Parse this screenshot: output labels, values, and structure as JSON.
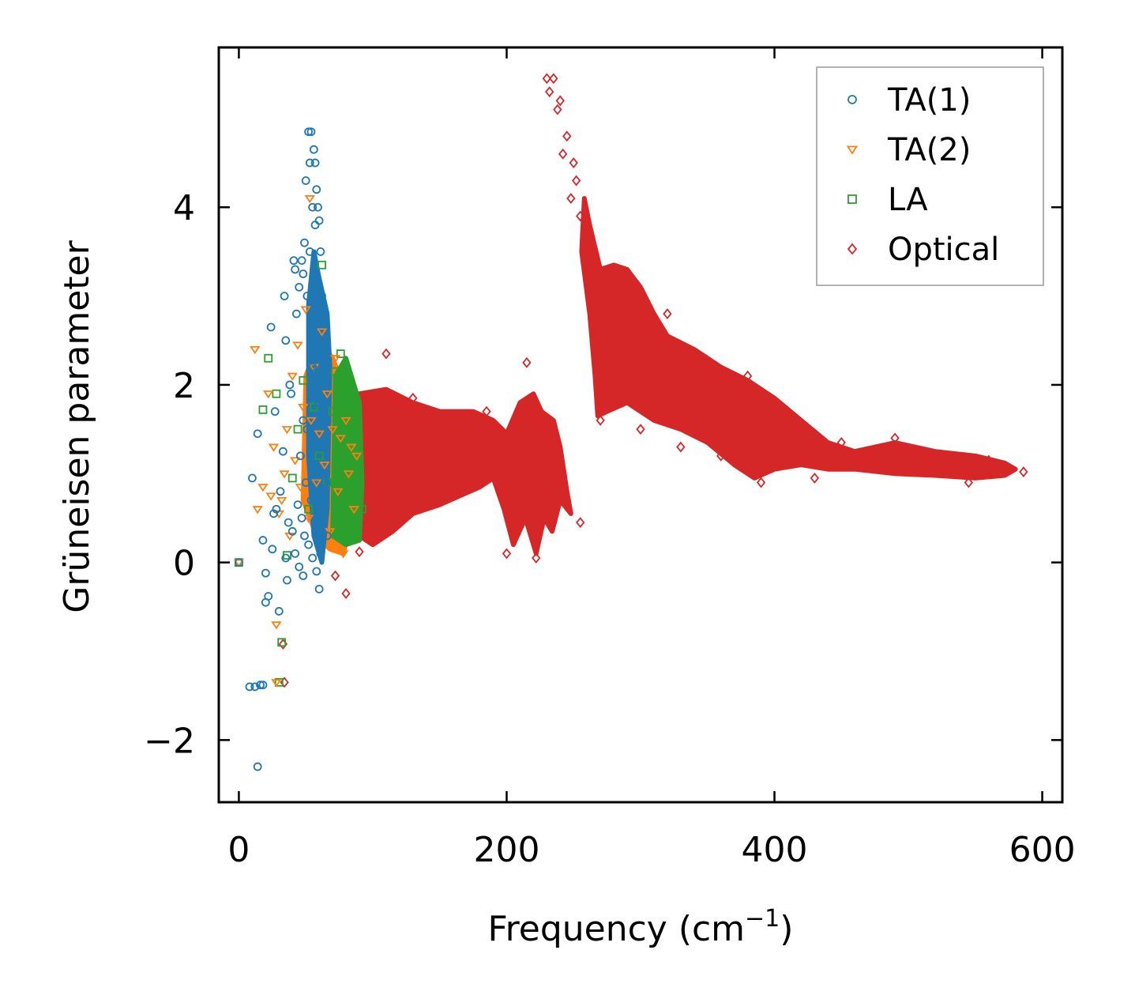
{
  "chart_data": {
    "type": "scatter",
    "title": "",
    "xlabel": "Frequency (cm",
    "xlabel_sup": "−1",
    "xlabel_end": ")",
    "ylabel": "Grüneisen parameter",
    "xlim": [
      -15,
      615
    ],
    "ylim": [
      -2.7,
      5.8
    ],
    "xticks": [
      0,
      200,
      400,
      600
    ],
    "yticks": [
      -2,
      0,
      2,
      4
    ],
    "xtick_labels": [
      "0",
      "200",
      "400",
      "600"
    ],
    "ytick_labels": [
      "−2",
      "0",
      "2",
      "4"
    ],
    "grid": false,
    "legend_position": "top-right",
    "series": [
      {
        "name": "TA(1)",
        "marker": "circle",
        "color": "#1f77b4",
        "points": [
          [
            0,
            0.0
          ],
          [
            8,
            -1.4
          ],
          [
            12,
            -1.4
          ],
          [
            14,
            -2.3
          ],
          [
            16,
            -1.38
          ],
          [
            18,
            -1.38
          ],
          [
            10,
            0.95
          ],
          [
            14,
            1.45
          ],
          [
            18,
            0.25
          ],
          [
            20,
            -0.12
          ],
          [
            20,
            -0.45
          ],
          [
            22,
            -0.38
          ],
          [
            24,
            2.65
          ],
          [
            25,
            0.15
          ],
          [
            26,
            0.55
          ],
          [
            27,
            1.7
          ],
          [
            28,
            0.6
          ],
          [
            30,
            -0.55
          ],
          [
            31,
            0.8
          ],
          [
            33,
            1.25
          ],
          [
            34,
            3.0
          ],
          [
            35,
            2.5
          ],
          [
            35,
            0.05
          ],
          [
            36,
            -0.2
          ],
          [
            37,
            0.45
          ],
          [
            38,
            2.0
          ],
          [
            39,
            1.9
          ],
          [
            40,
            0.35
          ],
          [
            41,
            3.4
          ],
          [
            42,
            0.1
          ],
          [
            42,
            3.3
          ],
          [
            43,
            2.8
          ],
          [
            44,
            0.65
          ],
          [
            45,
            3.1
          ],
          [
            45,
            -0.05
          ],
          [
            46,
            1.2
          ],
          [
            47,
            3.4
          ],
          [
            47,
            0.5
          ],
          [
            48,
            1.6
          ],
          [
            48,
            3.25
          ],
          [
            49,
            0.3
          ],
          [
            49,
            3.6
          ],
          [
            50,
            4.3
          ],
          [
            50,
            0.9
          ],
          [
            51,
            3.0
          ],
          [
            51,
            1.5
          ],
          [
            52,
            4.85
          ],
          [
            52,
            0.2
          ],
          [
            53,
            4.5
          ],
          [
            53,
            3.5
          ],
          [
            54,
            4.85
          ],
          [
            54,
            0.7
          ],
          [
            55,
            4.0
          ],
          [
            55,
            2.2
          ],
          [
            56,
            4.65
          ],
          [
            56,
            1.0
          ],
          [
            57,
            4.5
          ],
          [
            57,
            3.8
          ],
          [
            58,
            4.2
          ],
          [
            58,
            0.4
          ],
          [
            59,
            4.0
          ],
          [
            59,
            2.9
          ],
          [
            60,
            3.85
          ],
          [
            60,
            1.8
          ],
          [
            61,
            3.5
          ],
          [
            61,
            0.1
          ],
          [
            62,
            3.0
          ],
          [
            62,
            2.4
          ],
          [
            63,
            2.7
          ],
          [
            63,
            0.6
          ],
          [
            64,
            2.3
          ],
          [
            64,
            1.3
          ],
          [
            65,
            2.0
          ],
          [
            65,
            0.9
          ],
          [
            66,
            1.6
          ],
          [
            66,
            0.3
          ],
          [
            60,
            -0.3
          ],
          [
            58,
            -0.1
          ],
          [
            55,
            0.05
          ],
          [
            48,
            -0.15
          ]
        ]
      },
      {
        "name": "TA(2)",
        "marker": "triangle",
        "color": "#ff7f0e",
        "points": [
          [
            0,
            0.0
          ],
          [
            12,
            2.4
          ],
          [
            14,
            0.6
          ],
          [
            18,
            0.85
          ],
          [
            22,
            1.9
          ],
          [
            24,
            0.75
          ],
          [
            26,
            1.3
          ],
          [
            28,
            -0.7
          ],
          [
            28,
            -1.35
          ],
          [
            30,
            0.55
          ],
          [
            32,
            0.7
          ],
          [
            34,
            1.0
          ],
          [
            36,
            1.5
          ],
          [
            38,
            0.3
          ],
          [
            40,
            2.1
          ],
          [
            42,
            1.15
          ],
          [
            44,
            2.45
          ],
          [
            46,
            0.85
          ],
          [
            48,
            1.75
          ],
          [
            50,
            2.85
          ],
          [
            52,
            0.5
          ],
          [
            53,
            4.1
          ],
          [
            54,
            1.6
          ],
          [
            56,
            2.2
          ],
          [
            58,
            0.9
          ],
          [
            60,
            1.45
          ],
          [
            62,
            2.6
          ],
          [
            64,
            1.1
          ],
          [
            66,
            1.9
          ],
          [
            68,
            0.35
          ],
          [
            70,
            1.5
          ],
          [
            72,
            2.3
          ],
          [
            74,
            0.8
          ],
          [
            76,
            1.4
          ],
          [
            78,
            0.1
          ],
          [
            80,
            1.6
          ],
          [
            82,
            1.0
          ],
          [
            84,
            1.3
          ],
          [
            86,
            0.6
          ],
          [
            88,
            1.2
          ]
        ]
      },
      {
        "name": "LA",
        "marker": "square",
        "color": "#2ca02c",
        "points": [
          [
            0,
            0.0
          ],
          [
            18,
            1.72
          ],
          [
            22,
            2.3
          ],
          [
            28,
            1.9
          ],
          [
            30,
            -1.35
          ],
          [
            32,
            -0.9
          ],
          [
            36,
            0.08
          ],
          [
            40,
            0.95
          ],
          [
            44,
            1.5
          ],
          [
            48,
            2.05
          ],
          [
            52,
            0.6
          ],
          [
            56,
            1.75
          ],
          [
            60,
            1.2
          ],
          [
            62,
            3.35
          ],
          [
            66,
            0.9
          ],
          [
            70,
            1.7
          ],
          [
            72,
            2.15
          ],
          [
            76,
            2.35
          ],
          [
            78,
            0.4
          ],
          [
            80,
            1.5
          ],
          [
            82,
            1.8
          ],
          [
            84,
            0.7
          ],
          [
            86,
            1.3
          ],
          [
            88,
            0.9
          ],
          [
            90,
            1.1
          ],
          [
            92,
            0.6
          ]
        ]
      },
      {
        "name": "Optical",
        "marker": "diamond",
        "color": "#d62728",
        "points": [
          [
            33,
            -0.92
          ],
          [
            34,
            -1.35
          ],
          [
            72,
            -0.15
          ],
          [
            80,
            -0.35
          ],
          [
            90,
            0.12
          ],
          [
            110,
            2.35
          ],
          [
            130,
            1.85
          ],
          [
            150,
            1.6
          ],
          [
            175,
            1.65
          ],
          [
            185,
            1.7
          ],
          [
            200,
            0.1
          ],
          [
            215,
            2.25
          ],
          [
            222,
            0.05
          ],
          [
            230,
            5.45
          ],
          [
            232,
            5.3
          ],
          [
            235,
            5.45
          ],
          [
            238,
            5.1
          ],
          [
            240,
            5.2
          ],
          [
            242,
            4.6
          ],
          [
            245,
            4.8
          ],
          [
            248,
            4.1
          ],
          [
            250,
            4.5
          ],
          [
            252,
            4.3
          ],
          [
            255,
            3.9
          ],
          [
            258,
            3.7
          ],
          [
            255,
            0.45
          ],
          [
            262,
            3.5
          ],
          [
            265,
            3.2
          ],
          [
            270,
            1.6
          ],
          [
            285,
            3.2
          ],
          [
            300,
            1.5
          ],
          [
            320,
            2.8
          ],
          [
            330,
            1.3
          ],
          [
            350,
            2.25
          ],
          [
            360,
            1.2
          ],
          [
            380,
            2.1
          ],
          [
            390,
            0.9
          ],
          [
            410,
            1.7
          ],
          [
            430,
            0.95
          ],
          [
            450,
            1.35
          ],
          [
            470,
            1.2
          ],
          [
            490,
            1.4
          ],
          [
            510,
            1.2
          ],
          [
            530,
            1.2
          ],
          [
            545,
            0.9
          ],
          [
            560,
            1.15
          ],
          [
            572,
            1.05
          ],
          [
            586,
            1.02
          ]
        ]
      }
    ]
  }
}
